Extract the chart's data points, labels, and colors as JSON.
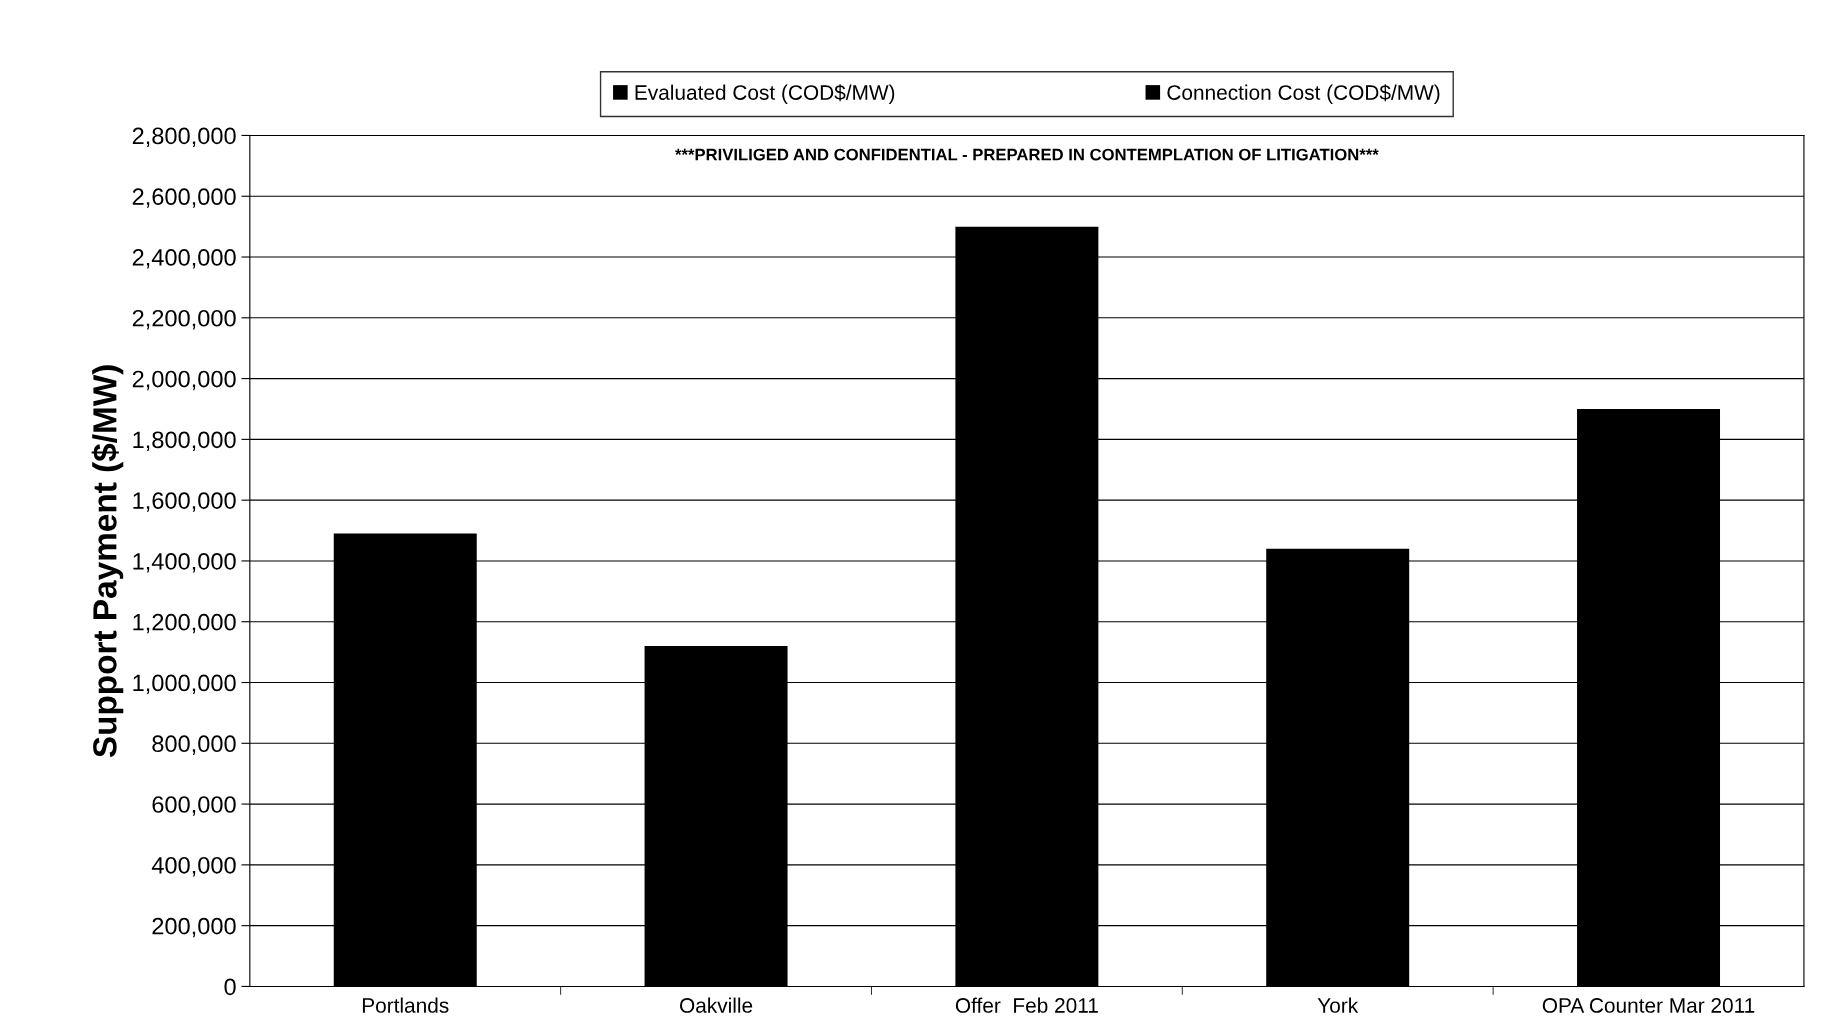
{
  "chart_data": {
    "type": "bar",
    "stacked": true,
    "categories": [
      "Portlands",
      "Oakville",
      "Offer  Feb 2011",
      "York",
      "OPA Counter Mar 2011"
    ],
    "series": [
      {
        "name": "Evaluated Cost (COD$/MW)",
        "color": "#000000",
        "values": [
          1490000,
          1120000,
          2500000,
          1440000,
          1900000
        ]
      },
      {
        "name": "Connection Cost (COD$/MW)",
        "color": "#000000",
        "values": [
          null,
          null,
          null,
          null,
          null
        ]
      }
    ],
    "ylabel": "Support Payment ($/MW)",
    "ylim": [
      0,
      2800000
    ],
    "yticks": [
      {
        "value": 0,
        "label": "0"
      },
      {
        "value": 200000,
        "label": "200,000"
      },
      {
        "value": 400000,
        "label": "400,000"
      },
      {
        "value": 600000,
        "label": "600,000"
      },
      {
        "value": 800000,
        "label": "800,000"
      },
      {
        "value": 1000000,
        "label": "1,000,000"
      },
      {
        "value": 1200000,
        "label": "1,200,000"
      },
      {
        "value": 1400000,
        "label": "1,400,000"
      },
      {
        "value": 1600000,
        "label": "1,600,000"
      },
      {
        "value": 1800000,
        "label": "1,800,000"
      },
      {
        "value": 2000000,
        "label": "2,000,000"
      },
      {
        "value": 2200000,
        "label": "2,200,000"
      },
      {
        "value": 2400000,
        "label": "2,400,000"
      },
      {
        "value": 2600000,
        "label": "2,600,000"
      },
      {
        "value": 2800000,
        "label": "2,800,000"
      }
    ],
    "annotations": [
      "***PRIVILIGED AND CONFIDENTIAL - PREPARED IN CONTEMPLATION OF LITIGATION***"
    ],
    "grid": "y",
    "legend": "top"
  }
}
